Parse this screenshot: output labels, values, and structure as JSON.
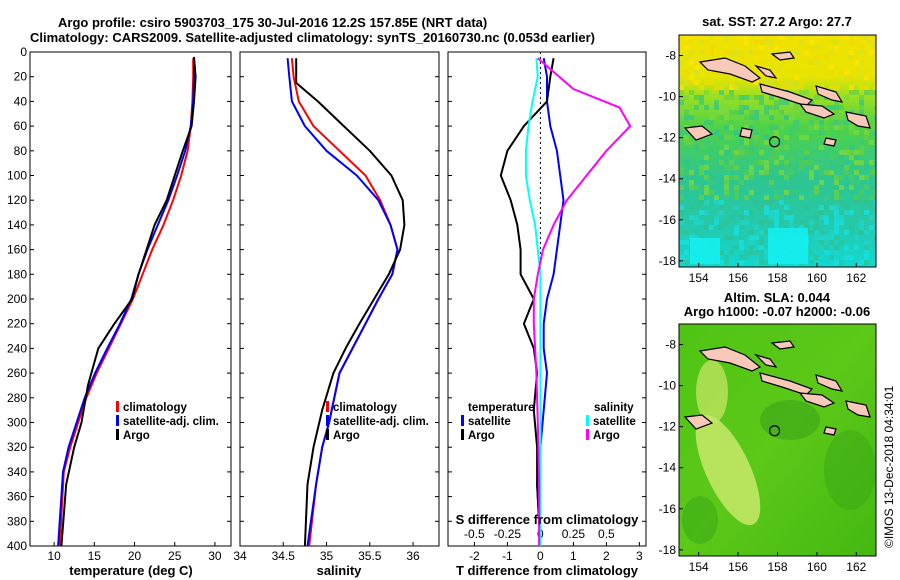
{
  "header": {
    "line1": "Argo profile: csiro 5903703_175 30-Jul-2016 12.2S 157.85E (NRT data)",
    "line2": "Climatology: CARS2009. Satellite-adjusted climatology: synTS_20160730.nc (0.053d earlier)"
  },
  "watermark": "©IMOS 13-Dec-2018 04:34:01",
  "colors": {
    "clim": "#ff0000",
    "sat": "#0000ff",
    "argo": "#000000",
    "sat_s": "#00ffff",
    "argo_s": "#ff00ff"
  },
  "chart_data": [
    {
      "id": "temp",
      "type": "line",
      "xlabel": "temperature (deg C)",
      "ylabel": "",
      "xlim": [
        7,
        32
      ],
      "ylim": [
        400,
        0
      ],
      "xticks": [
        10,
        15,
        20,
        25,
        30
      ],
      "yticks": [
        0,
        20,
        40,
        60,
        80,
        100,
        120,
        140,
        160,
        180,
        200,
        220,
        240,
        260,
        280,
        300,
        320,
        340,
        360,
        380,
        400
      ],
      "legend": [
        "climatology",
        "satellite-adj. clim.",
        "Argo"
      ],
      "legend_position": "lower-right",
      "series": [
        {
          "name": "climatology",
          "color": "clim",
          "x": [
            27.3,
            27.3,
            27.2,
            27.0,
            26.6,
            25.8,
            24.8,
            23.6,
            22.2,
            21.0,
            19.8,
            18.3,
            16.8,
            15.3,
            14.0,
            13.0,
            12.0,
            11.2,
            10.7
          ],
          "y": [
            5,
            20,
            40,
            60,
            80,
            100,
            120,
            140,
            160,
            180,
            200,
            220,
            240,
            260,
            280,
            300,
            320,
            340,
            400
          ]
        },
        {
          "name": "satellite-adj. clim.",
          "color": "sat",
          "x": [
            27.4,
            27.4,
            27.3,
            27.0,
            26.3,
            25.3,
            24.2,
            22.9,
            21.6,
            20.5,
            19.6,
            18.2,
            16.6,
            15.1,
            13.8,
            12.8,
            11.8,
            11.1,
            10.5
          ],
          "y": [
            5,
            20,
            40,
            60,
            80,
            100,
            120,
            140,
            160,
            180,
            200,
            220,
            240,
            260,
            280,
            300,
            320,
            340,
            400
          ]
        },
        {
          "name": "Argo",
          "color": "argo",
          "x": [
            27.4,
            27.6,
            27.4,
            27.1,
            26.0,
            25.0,
            24.0,
            22.5,
            21.5,
            20.5,
            19.7,
            17.5,
            15.5,
            14.2,
            13.4,
            12.5,
            11.5,
            10.9
          ],
          "y": [
            4,
            20,
            40,
            60,
            80,
            100,
            120,
            140,
            160,
            180,
            200,
            220,
            240,
            270,
            300,
            320,
            350,
            400
          ]
        }
      ]
    },
    {
      "id": "salt",
      "type": "line",
      "xlabel": "salinity",
      "xlim": [
        34.0,
        36.3
      ],
      "ylim": [
        400,
        0
      ],
      "xticks": [
        34,
        34.5,
        35,
        35.5,
        36
      ],
      "legend": [
        "climatology",
        "satellite-adj. clim.",
        "Argo"
      ],
      "legend_position": "lower-right",
      "series": [
        {
          "name": "climatology",
          "color": "clim",
          "x": [
            34.6,
            34.62,
            34.68,
            34.85,
            35.15,
            35.45,
            35.62,
            35.74,
            35.82,
            35.76,
            35.6,
            35.45,
            35.3,
            35.15,
            35.03,
            34.95,
            34.88,
            34.8
          ],
          "y": [
            5,
            20,
            40,
            60,
            80,
            100,
            120,
            140,
            160,
            180,
            200,
            220,
            240,
            260,
            300,
            320,
            350,
            400
          ]
        },
        {
          "name": "satellite-adj. clim.",
          "color": "sat",
          "x": [
            34.55,
            34.57,
            34.6,
            34.75,
            35.0,
            35.35,
            35.6,
            35.74,
            35.82,
            35.76,
            35.6,
            35.45,
            35.3,
            35.15,
            35.03,
            34.95,
            34.88,
            34.78
          ],
          "y": [
            5,
            20,
            40,
            60,
            80,
            100,
            120,
            140,
            160,
            180,
            200,
            220,
            240,
            260,
            300,
            320,
            350,
            400
          ]
        },
        {
          "name": "Argo",
          "color": "argo",
          "x": [
            34.65,
            34.65,
            34.9,
            35.2,
            35.5,
            35.75,
            35.88,
            35.9,
            35.85,
            35.72,
            35.55,
            35.38,
            35.22,
            35.08,
            34.95,
            34.85,
            34.78,
            34.75
          ],
          "y": [
            5,
            25,
            40,
            60,
            80,
            100,
            120,
            140,
            160,
            180,
            200,
            220,
            240,
            260,
            290,
            320,
            350,
            400
          ]
        }
      ]
    },
    {
      "id": "diff",
      "type": "line",
      "xlabel": "T difference from climatology",
      "x2label": "S difference from climatology",
      "xlim": [
        -2.8,
        3.2
      ],
      "x2lim": [
        -0.7,
        0.8
      ],
      "ylim": [
        400,
        0
      ],
      "xticks": [
        -2,
        -1,
        0,
        1,
        2,
        3
      ],
      "x2ticks": [
        -0.5,
        -0.25,
        0,
        0.25,
        0.5
      ],
      "x2ticklabels": [
        "-0.5",
        "-0.25",
        "0",
        "0.25",
        "0.5"
      ],
      "legend_temperature_title": "temperature",
      "legend_salinity_title": "salinity",
      "legend_temperature": [
        "satellite",
        "Argo"
      ],
      "legend_salinity": [
        "satellite",
        "Argo"
      ],
      "series": [
        {
          "name": "T satellite",
          "color": "sat",
          "x": [
            0.1,
            0.2,
            0.2,
            0.3,
            0.5,
            0.6,
            0.7,
            0.6,
            0.5,
            0.4,
            0.2,
            0.1,
            0.1,
            0.2,
            0.1,
            0.0,
            -0.1,
            0.0
          ],
          "y": [
            5,
            20,
            40,
            60,
            80,
            100,
            120,
            140,
            160,
            180,
            200,
            220,
            240,
            260,
            290,
            320,
            350,
            400
          ]
        },
        {
          "name": "T Argo",
          "color": "argo",
          "x": [
            0.4,
            0.3,
            0.2,
            -0.5,
            -1.0,
            -1.2,
            -0.9,
            -0.7,
            -0.6,
            -0.6,
            -0.2,
            -0.5,
            -0.2,
            -0.1,
            -0.2,
            -0.1,
            -0.1,
            0.0
          ],
          "y": [
            5,
            20,
            40,
            60,
            80,
            100,
            120,
            140,
            160,
            180,
            200,
            220,
            240,
            260,
            290,
            320,
            350,
            400
          ]
        },
        {
          "name": "S satellite",
          "color": "sat_s",
          "x": [
            -0.03,
            -0.02,
            -0.06,
            -0.09,
            -0.11,
            -0.11,
            -0.08,
            -0.04,
            -0.02,
            0.0,
            0.0,
            0.0,
            0.0,
            0.0,
            0.0,
            0.0,
            0.0
          ],
          "y": [
            5,
            20,
            40,
            60,
            80,
            100,
            120,
            140,
            160,
            180,
            200,
            220,
            260,
            300,
            330,
            360,
            400
          ]
        },
        {
          "name": "S Argo",
          "color": "argo_s",
          "x": [
            -0.02,
            0.25,
            0.6,
            0.68,
            0.5,
            0.35,
            0.2,
            0.1,
            0.02,
            -0.02,
            -0.05,
            -0.05,
            -0.03,
            -0.02,
            -0.01,
            -0.01
          ],
          "y": [
            5,
            30,
            45,
            60,
            80,
            100,
            120,
            140,
            160,
            180,
            200,
            220,
            260,
            300,
            350,
            400
          ]
        }
      ]
    },
    {
      "id": "sst_map",
      "type": "heatmap",
      "title": "sat. SST: 27.2 Argo: 27.7",
      "xlim": [
        153,
        163
      ],
      "ylim": [
        -18.3,
        -7
      ],
      "xticks": [
        154,
        156,
        158,
        160,
        162
      ],
      "yticks": [
        -8,
        -10,
        -12,
        -14,
        -16,
        -18
      ],
      "marker": {
        "lon": 157.85,
        "lat": -12.2
      }
    },
    {
      "id": "sla_map",
      "type": "heatmap",
      "title_line1": "Altim. SLA: 0.044",
      "title_line2": "Argo h1000: -0.07 h2000: -0.06",
      "xlim": [
        153,
        163
      ],
      "ylim": [
        -18.3,
        -7
      ],
      "xticks": [
        154,
        156,
        158,
        160,
        162
      ],
      "yticks": [
        -8,
        -10,
        -12,
        -14,
        -16,
        -18
      ],
      "marker": {
        "lon": 157.85,
        "lat": -12.2
      }
    }
  ]
}
